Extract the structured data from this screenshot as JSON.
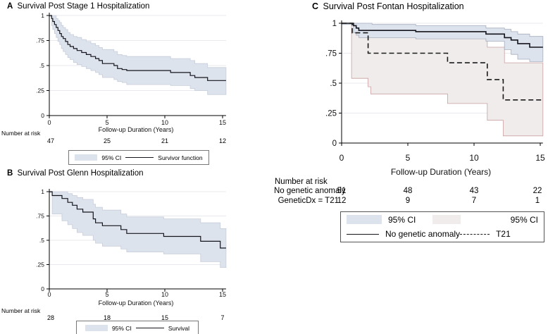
{
  "chart_data": [
    {
      "type": "line",
      "subtype": "kaplan-meier-step",
      "panel_label": "A",
      "title": "Survival Post Stage 1 Hospitalization",
      "xlabel": "Follow-up Duration (Years)",
      "xlim": [
        0,
        15.3
      ],
      "ylim": [
        0,
        1
      ],
      "xticks": [
        0,
        5,
        10,
        15
      ],
      "yticks": [
        0,
        0.25,
        0.5,
        0.75,
        1
      ],
      "ytick_labels": [
        "0",
        ".25",
        ".5",
        ".75",
        "1"
      ],
      "grid": "horizontal",
      "bands": [
        {
          "name": "95% CI",
          "fill": "#dde3ed",
          "stroke": "#c7cdda",
          "upper": [
            [
              0,
              1
            ],
            [
              0.6,
              0.97
            ],
            [
              0.75,
              0.95
            ],
            [
              0.9,
              0.93
            ],
            [
              1.05,
              0.9
            ],
            [
              1.2,
              0.88
            ],
            [
              1.4,
              0.86
            ],
            [
              1.6,
              0.83
            ],
            [
              1.8,
              0.81
            ],
            [
              2.1,
              0.79
            ],
            [
              2.4,
              0.78
            ],
            [
              2.8,
              0.76
            ],
            [
              3.2,
              0.74
            ],
            [
              3.6,
              0.72
            ],
            [
              4,
              0.7
            ],
            [
              4.3,
              0.68
            ],
            [
              4.6,
              0.66
            ],
            [
              5.6,
              0.64
            ],
            [
              5.9,
              0.61
            ],
            [
              6.3,
              0.6
            ],
            [
              6.7,
              0.59
            ],
            [
              10.5,
              0.57
            ],
            [
              12.2,
              0.55
            ],
            [
              12.6,
              0.52
            ],
            [
              13.7,
              0.48
            ],
            [
              15,
              0.48
            ]
          ],
          "lower": [
            [
              0,
              0.99
            ],
            [
              0.2,
              0.9
            ],
            [
              0.3,
              0.86
            ],
            [
              0.45,
              0.82
            ],
            [
              0.6,
              0.78
            ],
            [
              0.75,
              0.74
            ],
            [
              0.9,
              0.71
            ],
            [
              1.05,
              0.67
            ],
            [
              1.2,
              0.64
            ],
            [
              1.4,
              0.61
            ],
            [
              1.6,
              0.58
            ],
            [
              1.8,
              0.56
            ],
            [
              2.1,
              0.53
            ],
            [
              2.4,
              0.51
            ],
            [
              2.8,
              0.49
            ],
            [
              3.2,
              0.47
            ],
            [
              3.6,
              0.45
            ],
            [
              4,
              0.43
            ],
            [
              4.3,
              0.41
            ],
            [
              4.6,
              0.38
            ],
            [
              5.6,
              0.36
            ],
            [
              5.9,
              0.34
            ],
            [
              6.3,
              0.33
            ],
            [
              6.7,
              0.31
            ],
            [
              10.5,
              0.3
            ],
            [
              12.2,
              0.27
            ],
            [
              12.6,
              0.25
            ],
            [
              13.7,
              0.21
            ],
            [
              15,
              0.21
            ]
          ]
        }
      ],
      "series": [
        {
          "name": "Survivor function",
          "style": "solid",
          "color": "#15151d",
          "steps": [
            [
              0,
              1
            ],
            [
              0.2,
              0.97
            ],
            [
              0.3,
              0.94
            ],
            [
              0.45,
              0.91
            ],
            [
              0.6,
              0.88
            ],
            [
              0.75,
              0.85
            ],
            [
              0.9,
              0.82
            ],
            [
              1.05,
              0.79
            ],
            [
              1.2,
              0.77
            ],
            [
              1.4,
              0.74
            ],
            [
              1.6,
              0.71
            ],
            [
              1.8,
              0.69
            ],
            [
              2.1,
              0.67
            ],
            [
              2.4,
              0.65
            ],
            [
              2.8,
              0.63
            ],
            [
              3.2,
              0.61
            ],
            [
              3.6,
              0.59
            ],
            [
              4,
              0.57
            ],
            [
              4.3,
              0.55
            ],
            [
              4.6,
              0.52
            ],
            [
              5.6,
              0.5
            ],
            [
              5.9,
              0.47
            ],
            [
              6.3,
              0.46
            ],
            [
              6.7,
              0.45
            ],
            [
              10.5,
              0.43
            ],
            [
              12.2,
              0.4
            ],
            [
              12.6,
              0.38
            ],
            [
              13.7,
              0.35
            ],
            [
              15,
              0.35
            ]
          ]
        }
      ],
      "number_at_risk": {
        "title": "Number at risk",
        "rows": [
          {
            "label": "",
            "values": [
              "47",
              "25",
              "21",
              "12"
            ]
          }
        ]
      },
      "legend": {
        "items": [
          {
            "type": "band",
            "label": "95% CI"
          },
          {
            "type": "line",
            "style": "solid",
            "label": "Survivor function"
          }
        ]
      }
    },
    {
      "type": "line",
      "subtype": "kaplan-meier-step",
      "panel_label": "B",
      "title": "Survival Post Glenn Hospitalization",
      "xlabel": "Follow-up Duration (Years)",
      "xlim": [
        0,
        15.3
      ],
      "ylim": [
        0,
        1
      ],
      "xticks": [
        0,
        5,
        10,
        15
      ],
      "yticks": [
        0,
        0.25,
        0.5,
        0.75,
        1
      ],
      "ytick_labels": [
        "0",
        ".25",
        ".5",
        ".75",
        "1"
      ],
      "grid": "horizontal",
      "bands": [
        {
          "name": "95% CI",
          "fill": "#dde3ed",
          "stroke": "#c7cdda",
          "upper": [
            [
              0,
              1
            ],
            [
              1.6,
              0.98
            ],
            [
              2,
              0.96
            ],
            [
              2.4,
              0.94
            ],
            [
              2.9,
              0.92
            ],
            [
              3.8,
              0.87
            ],
            [
              4,
              0.84
            ],
            [
              4.6,
              0.81
            ],
            [
              6.2,
              0.77
            ],
            [
              6.7,
              0.74
            ],
            [
              9.9,
              0.72
            ],
            [
              13.1,
              0.68
            ],
            [
              14.8,
              0.62
            ],
            [
              15,
              0.62
            ]
          ],
          "lower": [
            [
              0,
              0.99
            ],
            [
              0.25,
              0.77
            ],
            [
              1.1,
              0.7
            ],
            [
              1.6,
              0.66
            ],
            [
              2,
              0.62
            ],
            [
              2.4,
              0.58
            ],
            [
              2.9,
              0.55
            ],
            [
              3.8,
              0.5
            ],
            [
              4,
              0.47
            ],
            [
              4.6,
              0.44
            ],
            [
              6.2,
              0.41
            ],
            [
              6.7,
              0.38
            ],
            [
              9.9,
              0.36
            ],
            [
              13.1,
              0.28
            ],
            [
              14.8,
              0.22
            ],
            [
              15,
              0.22
            ]
          ]
        }
      ],
      "series": [
        {
          "name": "Survival",
          "style": "solid",
          "color": "#15151d",
          "steps": [
            [
              0,
              1
            ],
            [
              0.25,
              0.96
            ],
            [
              1.1,
              0.93
            ],
            [
              1.6,
              0.89
            ],
            [
              2,
              0.86
            ],
            [
              2.4,
              0.82
            ],
            [
              2.9,
              0.79
            ],
            [
              3.8,
              0.72
            ],
            [
              4,
              0.68
            ],
            [
              4.6,
              0.65
            ],
            [
              6.2,
              0.61
            ],
            [
              6.7,
              0.57
            ],
            [
              9.9,
              0.54
            ],
            [
              13.1,
              0.49
            ],
            [
              14.8,
              0.42
            ],
            [
              15,
              0.42
            ]
          ]
        }
      ],
      "number_at_risk": {
        "title": "Number at risk",
        "rows": [
          {
            "label": "",
            "values": [
              "28",
              "18",
              "15",
              "7"
            ]
          }
        ]
      },
      "legend": {
        "items": [
          {
            "type": "band",
            "label": "95% CI"
          },
          {
            "type": "line",
            "style": "solid",
            "label": "Survival"
          }
        ]
      }
    },
    {
      "type": "line",
      "subtype": "kaplan-meier-step",
      "panel_label": "C",
      "title": "Survival Post Fontan Hospitalization",
      "xlabel": "Follow-up Duration (Years)",
      "xlim": [
        0,
        15.2
      ],
      "ylim": [
        0,
        1
      ],
      "xticks": [
        0,
        5,
        10,
        15
      ],
      "yticks": [
        0,
        0.25,
        0.5,
        0.75,
        1
      ],
      "ytick_labels": [
        "0",
        ".25",
        ".5",
        ".75",
        "1"
      ],
      "grid": "horizontal",
      "bands": [
        {
          "name": "95% CI T21",
          "fill": "#efeceb",
          "stroke": "#c8a0a2",
          "upper": [
            [
              0.75,
              1
            ],
            [
              1.2,
              0.97
            ],
            [
              2,
              0.93
            ],
            [
              8,
              0.89
            ],
            [
              11,
              0.8
            ],
            [
              12.3,
              0.67
            ],
            [
              15,
              0.67
            ]
          ],
          "lower": [
            [
              0.75,
              0.54
            ],
            [
              2,
              0.47
            ],
            [
              2.2,
              0.41
            ],
            [
              8,
              0.33
            ],
            [
              11,
              0.19
            ],
            [
              12.2,
              0.06
            ],
            [
              15,
              0.06
            ]
          ]
        },
        {
          "name": "95% CI no genetic anomaly",
          "fill": "#dde3ed",
          "stroke": "#a6aebe",
          "upper": [
            [
              0,
              1
            ],
            [
              2.3,
              0.99
            ],
            [
              5.6,
              0.98
            ],
            [
              10.9,
              0.96
            ],
            [
              12.3,
              0.95
            ],
            [
              12.8,
              0.93
            ],
            [
              13.3,
              0.91
            ],
            [
              14.2,
              0.89
            ],
            [
              15,
              0.89
            ]
          ],
          "lower": [
            [
              0,
              0.99
            ],
            [
              0.9,
              0.92
            ],
            [
              1.1,
              0.9
            ],
            [
              1.3,
              0.88
            ],
            [
              5.6,
              0.87
            ],
            [
              10.9,
              0.85
            ],
            [
              12.3,
              0.78
            ],
            [
              12.8,
              0.74
            ],
            [
              13.3,
              0.7
            ],
            [
              14.2,
              0.68
            ],
            [
              15,
              0.68
            ]
          ]
        }
      ],
      "series": [
        {
          "name": "No genetic anomaly",
          "style": "solid",
          "color": "#15151d",
          "steps": [
            [
              0,
              1
            ],
            [
              0.9,
              0.98
            ],
            [
              1.1,
              0.96
            ],
            [
              1.3,
              0.94
            ],
            [
              5.6,
              0.93
            ],
            [
              10.9,
              0.91
            ],
            [
              12.3,
              0.88
            ],
            [
              12.8,
              0.86
            ],
            [
              13.3,
              0.83
            ],
            [
              14.2,
              0.8
            ],
            [
              15,
              0.8
            ]
          ]
        },
        {
          "name": "T21",
          "style": "dashed",
          "color": "#1a1a1a",
          "steps": [
            [
              0,
              1
            ],
            [
              0.8,
              0.92
            ],
            [
              2,
              0.75
            ],
            [
              8,
              0.67
            ],
            [
              11,
              0.53
            ],
            [
              12.2,
              0.36
            ],
            [
              15,
              0.36
            ]
          ]
        }
      ],
      "number_at_risk": {
        "title": "Number at risk",
        "rows": [
          {
            "label": "No genetic anomaly",
            "values": [
              "51",
              "48",
              "43",
              "22"
            ]
          },
          {
            "label": "GeneticDx = T21",
            "values": [
              "12",
              "9",
              "7",
              "1"
            ]
          }
        ]
      },
      "legend": {
        "rows": [
          {
            "items": [
              {
                "type": "band",
                "label": "95% CI"
              },
              {
                "type": "band",
                "label": "95% CI"
              }
            ]
          },
          {
            "items": [
              {
                "type": "line",
                "style": "solid",
                "label": "No genetic anomaly"
              },
              {
                "type": "line",
                "style": "dashed",
                "label": "T21"
              }
            ]
          }
        ]
      }
    }
  ]
}
